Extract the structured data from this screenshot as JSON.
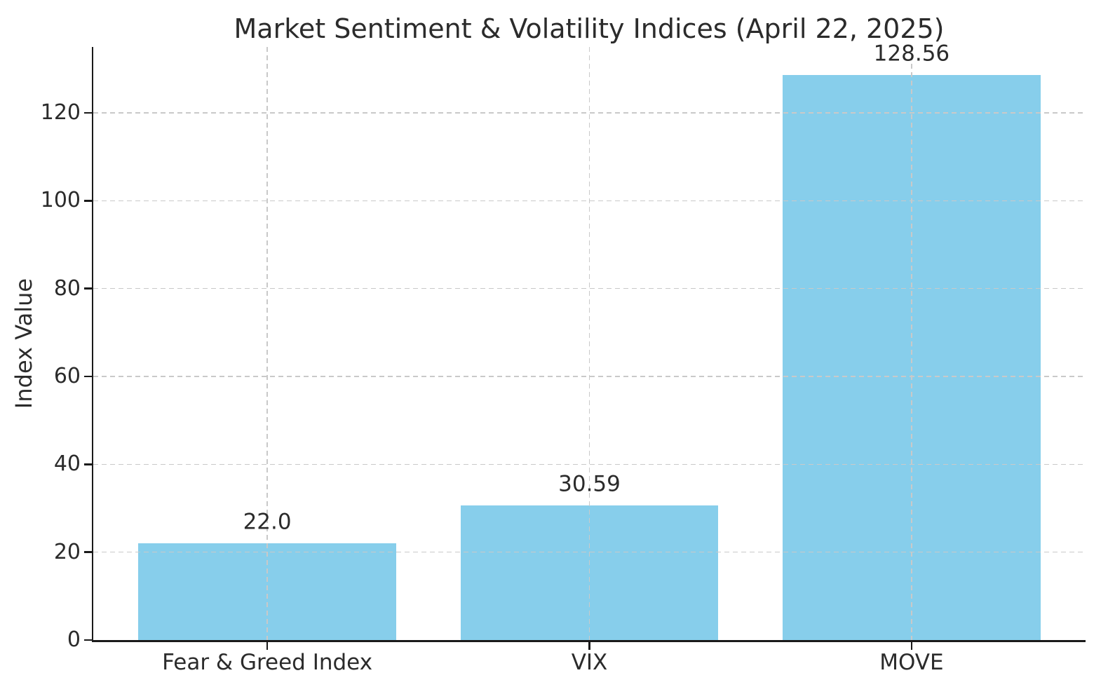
{
  "chart_data": {
    "type": "bar",
    "title": "Market Sentiment & Volatility Indices (April 22, 2025)",
    "xlabel": "",
    "ylabel": "Index Value",
    "categories": [
      "Fear & Greed Index",
      "VIX",
      "MOVE"
    ],
    "values": [
      22.0,
      30.59,
      128.56
    ],
    "value_labels": [
      "22.0",
      "30.59",
      "128.56"
    ],
    "yticks": [
      0,
      20,
      40,
      60,
      80,
      100,
      120
    ],
    "ylim": [
      0,
      135
    ],
    "grid": true,
    "grid_axes": "both",
    "grid_style": "dashed",
    "legend": "none",
    "colors": {
      "bar": "#87CEEB",
      "grid": "#c9c9c9",
      "spine": "#1a1a1a",
      "text": "#2b2b2b",
      "background": "#ffffff"
    }
  }
}
